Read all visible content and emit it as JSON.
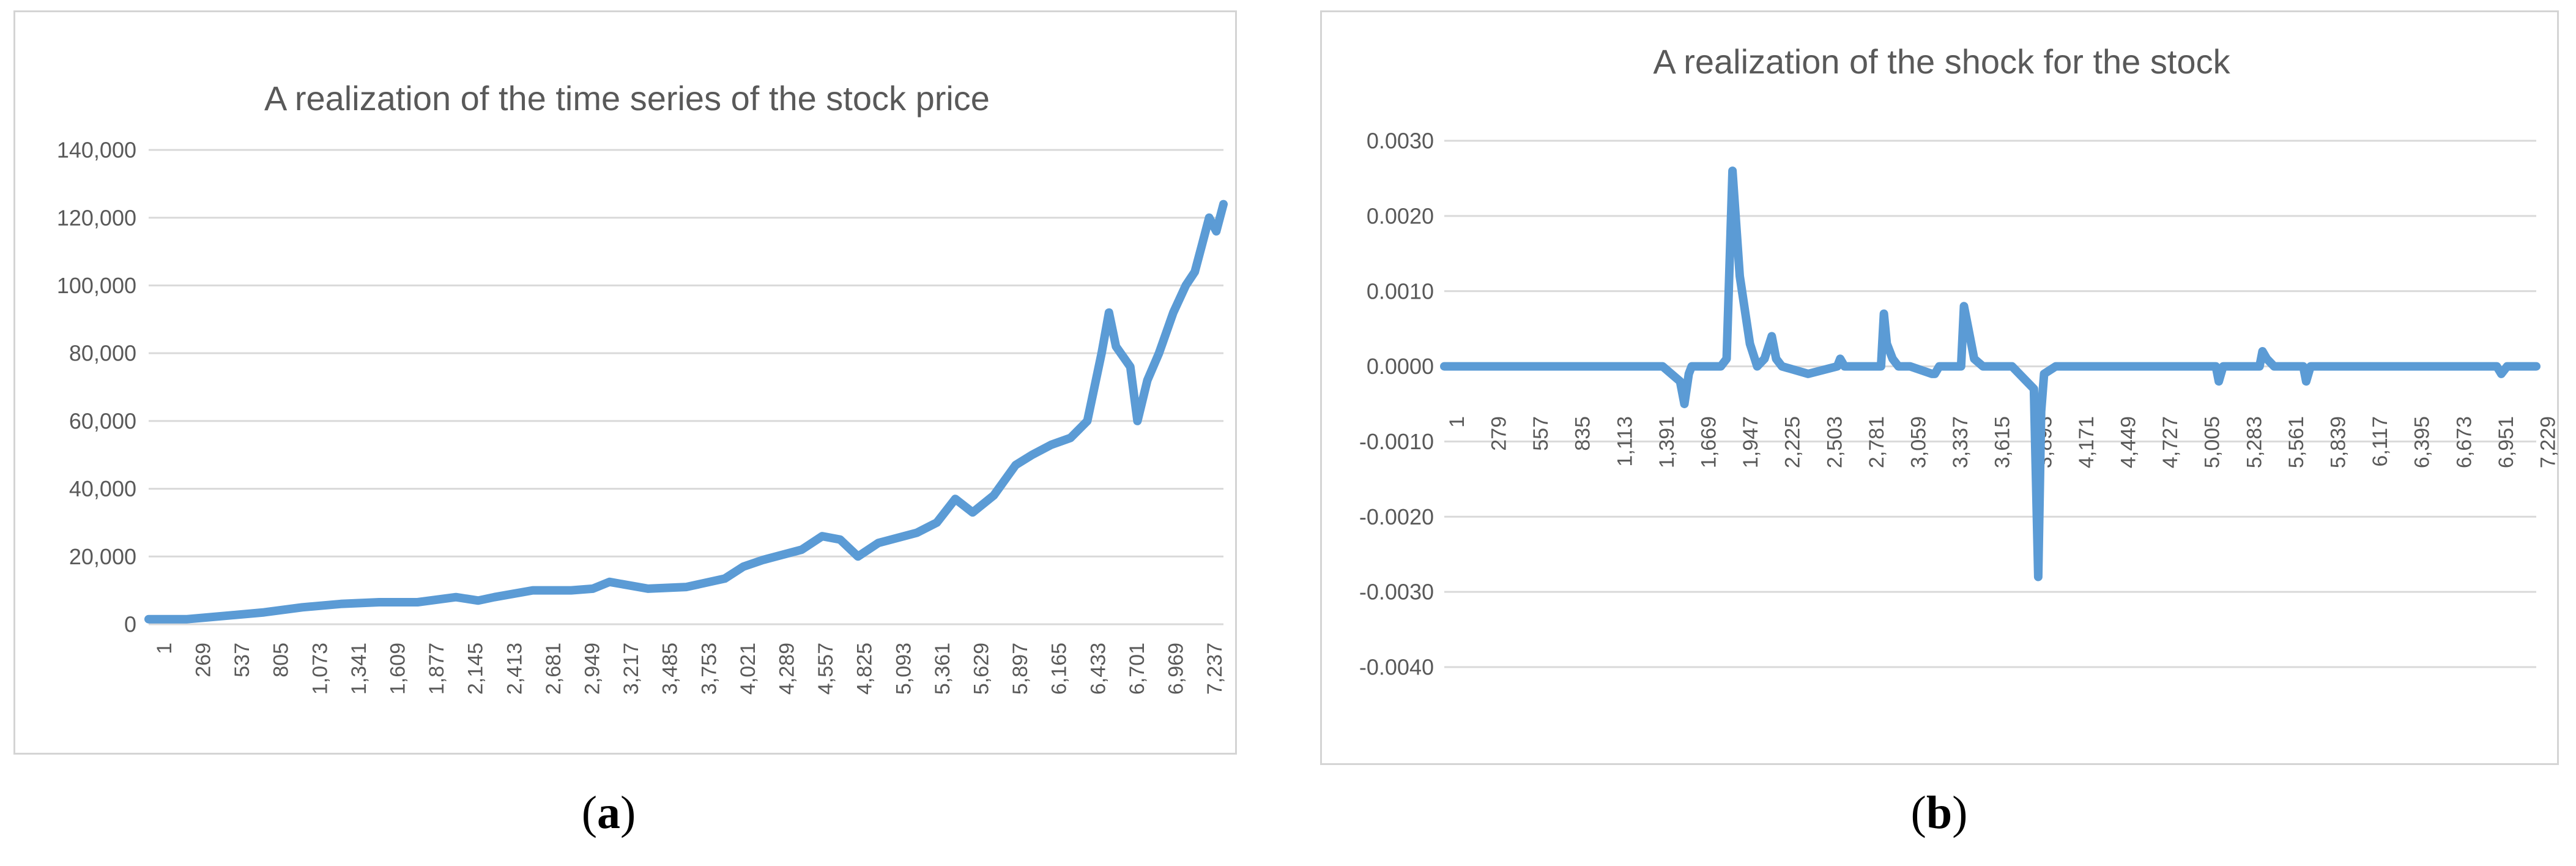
{
  "captions": {
    "a_open": "(",
    "a_letter": "a",
    "a_close": ")",
    "b_open": "(",
    "b_letter": "b",
    "b_close": ")"
  },
  "chart_data": [
    {
      "type": "line",
      "title": "A realization of the time series of the stock price",
      "xlabel": "",
      "ylabel": "",
      "ylim": [
        0,
        140000
      ],
      "y_tick_labels": [
        "0",
        "20,000",
        "40,000",
        "60,000",
        "80,000",
        "100,000",
        "120,000",
        "140,000"
      ],
      "y_tick_values": [
        0,
        20000,
        40000,
        60000,
        80000,
        100000,
        120000,
        140000
      ],
      "x_tick_labels": [
        "1",
        "269",
        "537",
        "805",
        "1,073",
        "1,341",
        "1,609",
        "1,877",
        "2,145",
        "2,413",
        "2,681",
        "2,949",
        "3,217",
        "3,485",
        "3,753",
        "4,021",
        "4,289",
        "4,557",
        "4,825",
        "5,093",
        "5,361",
        "5,629",
        "5,897",
        "6,165",
        "6,433",
        "6,701",
        "6,969",
        "7,237"
      ],
      "xlim": [
        1,
        7500
      ],
      "grid": true,
      "color": "#5b9bd5",
      "series": [
        {
          "x": [
            1,
            269,
            537,
            805,
            1073,
            1341,
            1609,
            1877,
            2145,
            2300,
            2413,
            2681,
            2949,
            3100,
            3217,
            3485,
            3753,
            4021,
            4150,
            4289,
            4557,
            4700,
            4825,
            4950,
            5093,
            5361,
            5500,
            5629,
            5750,
            5897,
            6050,
            6165,
            6300,
            6433,
            6550,
            6650,
            6701,
            6750,
            6850,
            6900,
            6969,
            7050,
            7150,
            7237,
            7300,
            7350,
            7400,
            7450,
            7500
          ],
          "y": [
            1500,
            1500,
            2500,
            3500,
            5000,
            6000,
            6500,
            6500,
            8000,
            7000,
            8000,
            10000,
            10000,
            10500,
            12500,
            10500,
            11000,
            13500,
            17000,
            19000,
            22000,
            26000,
            25000,
            20000,
            24000,
            27000,
            30000,
            37000,
            33000,
            38000,
            47000,
            50000,
            53000,
            55000,
            60000,
            80000,
            92000,
            82000,
            76000,
            60000,
            72000,
            80000,
            92000,
            100000,
            104000,
            112000,
            120000,
            116000,
            124000
          ]
        }
      ]
    },
    {
      "type": "line",
      "title": "A realization of the shock for the stock",
      "xlabel": "",
      "ylabel": "",
      "ylim": [
        -0.004,
        0.003
      ],
      "y_tick_labels": [
        "-0.0040",
        "-0.0030",
        "-0.0020",
        "-0.0010",
        "0.0000",
        "0.0010",
        "0.0020",
        "0.0030"
      ],
      "y_tick_values": [
        -0.004,
        -0.003,
        -0.002,
        -0.001,
        0.0,
        0.001,
        0.002,
        0.003
      ],
      "x_tick_labels": [
        "1",
        "279",
        "557",
        "835",
        "1,113",
        "1,391",
        "1,669",
        "1,947",
        "2,225",
        "2,503",
        "2,781",
        "3,059",
        "3,337",
        "3,615",
        "3,893",
        "4,171",
        "4,449",
        "4,727",
        "5,005",
        "5,283",
        "5,561",
        "5,839",
        "6,117",
        "6,395",
        "6,673",
        "6,951",
        "7,229"
      ],
      "xlim": [
        1,
        7500
      ],
      "grid": true,
      "color": "#5b9bd5",
      "series": [
        {
          "x": [
            1,
            1500,
            1620,
            1650,
            1680,
            1700,
            1900,
            1940,
            1980,
            2030,
            2100,
            2150,
            2200,
            2250,
            2280,
            2320,
            2500,
            2700,
            2720,
            2750,
            3000,
            3020,
            3040,
            3080,
            3120,
            3200,
            3350,
            3370,
            3400,
            3550,
            3570,
            3600,
            3640,
            3700,
            3800,
            3900,
            4050,
            4080,
            4100,
            4120,
            4200,
            5300,
            5320,
            5350,
            5600,
            5620,
            5650,
            5700,
            5900,
            5920,
            5950,
            7229,
            7260,
            7300,
            7500
          ],
          "y": [
            0,
            0,
            -0.0002,
            -0.0005,
            -0.0001,
            0,
            0,
            0.0001,
            0.0026,
            0.0012,
            0.0003,
            0,
            0.0001,
            0.0004,
            0.0001,
            0,
            -0.0001,
            0,
            0.0001,
            0,
            0,
            0.0007,
            0.0003,
            0.0001,
            0,
            0,
            -0.0001,
            -0.0001,
            0,
            0,
            0.0008,
            0.0005,
            0.0001,
            0,
            0,
            0,
            -0.0003,
            -0.0028,
            -0.0006,
            -0.0001,
            0,
            0,
            -0.0002,
            0,
            0,
            0.0002,
            0.0001,
            0,
            0,
            -0.0002,
            0,
            0,
            -0.0001,
            0,
            0
          ]
        }
      ]
    }
  ]
}
